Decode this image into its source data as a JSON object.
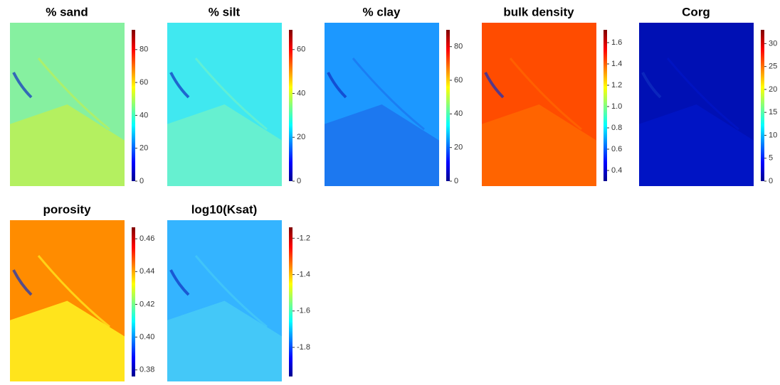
{
  "chart_data": [
    {
      "type": "heatmap",
      "title": "% sand",
      "clim": [
        0,
        92
      ],
      "yticks": [
        0,
        20,
        40,
        60,
        80
      ],
      "colors": [
        "#86f0a0",
        "#b4f060"
      ]
    },
    {
      "type": "heatmap",
      "title": "% silt",
      "clim": [
        0,
        69
      ],
      "yticks": [
        0,
        20,
        40,
        60
      ],
      "colors": [
        "#40e8f0",
        "#66f0d0"
      ]
    },
    {
      "type": "heatmap",
      "title": "% clay",
      "clim": [
        0,
        90
      ],
      "yticks": [
        0,
        20,
        40,
        60,
        80
      ],
      "colors": [
        "#1c98ff",
        "#1c78f0"
      ]
    },
    {
      "type": "heatmap",
      "title": "bulk density",
      "clim": [
        0.3,
        1.72
      ],
      "yticks": [
        {
          "value": 0.4,
          "label": "0.4"
        },
        {
          "value": 0.6,
          "label": "0.6"
        },
        {
          "value": 0.8,
          "label": "0.8"
        },
        {
          "value": 1,
          "label": "1.0"
        },
        {
          "value": 1.2,
          "label": "1.2"
        },
        {
          "value": 1.4,
          "label": "1.4"
        },
        {
          "value": 1.6,
          "label": "1.6"
        }
      ],
      "colors": [
        "#ff4c00",
        "#ff6400"
      ]
    },
    {
      "type": "heatmap",
      "title": "Corg",
      "clim": [
        0,
        33
      ],
      "yticks": [
        0,
        5,
        10,
        15,
        20,
        25,
        30
      ],
      "colors": [
        "#0010b4",
        "#0014c4"
      ]
    },
    {
      "type": "heatmap",
      "title": "porosity",
      "clim": [
        0.376,
        0.467
      ],
      "yticks": [
        0.38,
        {
          "value": 0.4,
          "label": "0.40"
        },
        0.42,
        0.44,
        0.46
      ],
      "colors": [
        "#ff8c00",
        "#ffe41c"
      ]
    },
    {
      "type": "heatmap",
      "title": "log10(Ksat)",
      "clim": [
        -1.96,
        -1.14
      ],
      "yticks": [
        -1.8,
        -1.6,
        -1.4,
        -1.2
      ],
      "colors": [
        "#34b4ff",
        "#44c8f8"
      ]
    }
  ]
}
